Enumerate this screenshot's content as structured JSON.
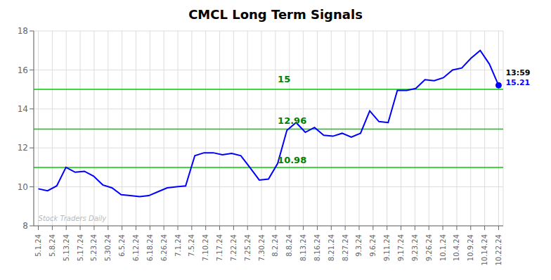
{
  "chart_data": {
    "type": "line",
    "title": "CMCL Long Term Signals",
    "x": [
      0,
      1,
      2,
      3,
      4,
      5,
      6,
      7,
      8,
      9,
      10,
      11,
      12,
      13,
      14,
      15,
      16,
      17,
      18,
      19,
      20,
      21,
      22,
      23,
      24,
      25,
      26,
      27,
      28,
      29,
      30,
      31,
      32,
      33,
      34,
      35,
      36,
      37,
      38,
      39,
      40,
      41,
      42,
      43,
      44,
      45,
      46,
      47,
      48,
      49,
      50
    ],
    "series": [
      {
        "color": "blue",
        "values": [
          9.9,
          9.8,
          10.05,
          11.0,
          10.75,
          10.8,
          10.55,
          10.1,
          9.95,
          9.6,
          9.55,
          9.5,
          9.55,
          9.75,
          9.95,
          10.0,
          10.05,
          11.6,
          11.75,
          11.75,
          11.65,
          11.72,
          11.6,
          10.98,
          10.35,
          10.4,
          11.2,
          12.9,
          13.3,
          12.8,
          13.05,
          12.65,
          12.6,
          12.75,
          12.55,
          12.75,
          13.9,
          13.35,
          13.3,
          14.95,
          14.95,
          15.05,
          15.5,
          15.45,
          15.6,
          16.0,
          16.1,
          16.6,
          17.0,
          16.3,
          15.21
        ]
      }
    ],
    "xlim": [
      -0.5,
      50.5
    ],
    "xticks": [
      {
        "value": 0,
        "label": "5.1.24"
      },
      {
        "value": 1.515152,
        "label": "5.8.24"
      },
      {
        "value": 3.030303,
        "label": "5.13.24"
      },
      {
        "value": 4.545455,
        "label": "5.17.24"
      },
      {
        "value": 6.060606,
        "label": "5.23.24"
      },
      {
        "value": 7.575758,
        "label": "5.30.24"
      },
      {
        "value": 9.090909,
        "label": "6.5.24"
      },
      {
        "value": 10.606061,
        "label": "6.12.24"
      },
      {
        "value": 12.121212,
        "label": "6.18.24"
      },
      {
        "value": 13.636364,
        "label": "6.26.24"
      },
      {
        "value": 15.151515,
        "label": "7.1.24"
      },
      {
        "value": 16.666667,
        "label": "7.5.24"
      },
      {
        "value": 18.181818,
        "label": "7.10.24"
      },
      {
        "value": 19.69697,
        "label": "7.17.24"
      },
      {
        "value": 21.212121,
        "label": "7.22.24"
      },
      {
        "value": 22.727273,
        "label": "7.25.24"
      },
      {
        "value": 24.242424,
        "label": "7.30.24"
      },
      {
        "value": 25.757576,
        "label": "8.2.24"
      },
      {
        "value": 27.272727,
        "label": "8.8.24"
      },
      {
        "value": 28.787879,
        "label": "8.13.24"
      },
      {
        "value": 30.30303,
        "label": "8.16.24"
      },
      {
        "value": 31.818182,
        "label": "8.21.24"
      },
      {
        "value": 33.333333,
        "label": "8.27.24"
      },
      {
        "value": 34.848485,
        "label": "9.3.24"
      },
      {
        "value": 36.363636,
        "label": "9.6.24"
      },
      {
        "value": 37.878788,
        "label": "9.11.24"
      },
      {
        "value": 39.393939,
        "label": "9.17.24"
      },
      {
        "value": 40.909091,
        "label": "9.23.24"
      },
      {
        "value": 42.424242,
        "label": "9.26.24"
      },
      {
        "value": 43.939394,
        "label": "10.1.24"
      },
      {
        "value": 45.454545,
        "label": "10.4.24"
      },
      {
        "value": 46.969697,
        "label": "10.9.24"
      },
      {
        "value": 48.484848,
        "label": "10.14.24"
      },
      {
        "value": 50,
        "label": "10.22.24"
      }
    ],
    "ylim": [
      8,
      18
    ],
    "yticks": [
      8,
      10,
      12,
      14,
      16,
      18
    ],
    "grid": true,
    "hlines": [
      {
        "y": 15.0,
        "color": "#00cc00"
      },
      {
        "y": 12.96,
        "color": "#00cc00"
      },
      {
        "y": 11.0,
        "color": "#00cc00"
      }
    ],
    "annotations": [
      {
        "text": "15",
        "x": 26,
        "y": 15.35,
        "color": "green"
      },
      {
        "text": "12.96",
        "x": 26,
        "y": 13.22,
        "color": "green"
      },
      {
        "text": "10.98",
        "x": 26,
        "y": 11.22,
        "color": "green"
      },
      {
        "text": "Stock Traders Daily",
        "x": 0,
        "y": 8.25,
        "color": "gray"
      }
    ],
    "end_labels": [
      {
        "text": "13:59",
        "color": "black"
      },
      {
        "text": "15.21",
        "color": "blue"
      }
    ]
  }
}
